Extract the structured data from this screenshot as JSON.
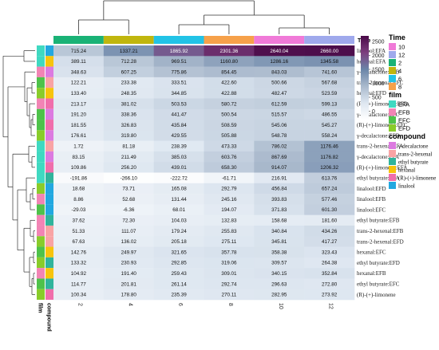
{
  "chart_data": {
    "type": "heatmap",
    "column_annotation_title": "Time",
    "columns": [
      "2",
      "4",
      "6",
      "8",
      "10",
      "12"
    ],
    "row_annotations": [
      "film",
      "compound"
    ],
    "rows": [
      {
        "label": "linalool:EFA",
        "values": [
          715.24,
          1337.21,
          1865.92,
          2301.36,
          2640.04,
          2660.0
        ],
        "film": "EFA",
        "compound": "linalool"
      },
      {
        "label": "hexanal:EFA",
        "values": [
          389.11,
          712.28,
          969.51,
          1160.8,
          1286.16,
          1345.58
        ],
        "film": "EFA",
        "compound": "hexanal"
      },
      {
        "label": "γ-decalactone:EFB",
        "values": [
          348.63,
          607.25,
          775.86,
          854.45,
          843.03,
          741.6
        ],
        "film": "EFB",
        "compound": "γ-decalactone"
      },
      {
        "label": "trans-2-hexenal:EFC",
        "values": [
          122.21,
          233.38,
          333.51,
          422.6,
          500.66,
          567.68
        ],
        "film": "EFC",
        "compound": "trans-2-hexenal"
      },
      {
        "label": "hexanal:EFD",
        "values": [
          133.4,
          248.35,
          344.85,
          422.88,
          482.47,
          523.59
        ],
        "film": "EFD",
        "compound": "hexanal"
      },
      {
        "label": "(R)-(+)-limonene:EFB",
        "values": [
          213.17,
          381.02,
          503.53,
          580.72,
          612.59,
          599.13
        ],
        "film": "EFB",
        "compound": "(R)-(+)-limonene"
      },
      {
        "label": "γ-decalactone:EFC",
        "values": [
          191.2,
          338.36,
          441.47,
          500.54,
          515.57,
          486.55
        ],
        "film": "EFC",
        "compound": "γ-decalactone"
      },
      {
        "label": "(R)-(+)-limonene:EFC",
        "values": [
          181.55,
          326.83,
          435.84,
          508.59,
          545.06,
          545.27
        ],
        "film": "EFC",
        "compound": "(R)-(+)-limonene"
      },
      {
        "label": "γ-decalactone:EFD",
        "values": [
          176.61,
          319.8,
          429.55,
          505.88,
          548.78,
          558.24
        ],
        "film": "EFD",
        "compound": "γ-decalactone"
      },
      {
        "label": "trans-2-hexenal:EFA",
        "values": [
          1.72,
          81.18,
          238.39,
          473.33,
          786.02,
          1176.46
        ],
        "film": "EFA",
        "compound": "trans-2-hexenal"
      },
      {
        "label": "γ-decalactone:EFA",
        "values": [
          83.15,
          211.49,
          385.03,
          603.76,
          867.69,
          1176.82
        ],
        "film": "EFA",
        "compound": "γ-decalactone"
      },
      {
        "label": "(R)-(+)-limonene:EFA",
        "values": [
          109.86,
          256.2,
          439.01,
          658.3,
          914.07,
          1206.32
        ],
        "film": "EFA",
        "compound": "(R)-(+)-limonene"
      },
      {
        "label": "ethyl butyrate:EFA",
        "values": [
          -191.86,
          -266.1,
          -222.72,
          -61.71,
          216.91,
          613.76
        ],
        "film": "EFA",
        "compound": "ethyl butyrate"
      },
      {
        "label": "linalool:EFD",
        "values": [
          18.68,
          73.71,
          165.08,
          292.79,
          456.84,
          657.24
        ],
        "film": "EFD",
        "compound": "linalool"
      },
      {
        "label": "linalool:EFB",
        "values": [
          8.86,
          52.68,
          131.44,
          245.16,
          393.83,
          577.46
        ],
        "film": "EFB",
        "compound": "linalool"
      },
      {
        "label": "linalool:EFC",
        "values": [
          -29.03,
          -6.36,
          68.01,
          194.07,
          371.83,
          601.3
        ],
        "film": "EFC",
        "compound": "linalool"
      },
      {
        "label": "ethyl butyrate:EFB",
        "values": [
          37.62,
          72.3,
          104.03,
          132.83,
          158.68,
          181.6
        ],
        "film": "EFB",
        "compound": "ethyl butyrate"
      },
      {
        "label": "trans-2-hexenal:EFB",
        "values": [
          51.33,
          111.07,
          179.24,
          255.83,
          340.84,
          434.26
        ],
        "film": "EFB",
        "compound": "trans-2-hexenal"
      },
      {
        "label": "trans-2-hexenal:EFD",
        "values": [
          67.63,
          136.02,
          205.18,
          275.11,
          345.81,
          417.27
        ],
        "film": "EFD",
        "compound": "trans-2-hexenal"
      },
      {
        "label": "hexanal:EFC",
        "values": [
          142.76,
          249.97,
          321.65,
          357.78,
          358.38,
          323.43
        ],
        "film": "EFC",
        "compound": "hexanal"
      },
      {
        "label": "ethyl butyrate:EFD",
        "values": [
          133.32,
          230.93,
          292.85,
          319.06,
          309.57,
          264.38
        ],
        "film": "EFD",
        "compound": "ethyl butyrate"
      },
      {
        "label": "hexanal:EFB",
        "values": [
          104.92,
          191.4,
          259.43,
          309.01,
          340.15,
          352.84
        ],
        "film": "EFB",
        "compound": "hexanal"
      },
      {
        "label": "ethyl butyrate:EFC",
        "values": [
          114.77,
          201.81,
          261.14,
          292.74,
          296.63,
          272.8
        ],
        "film": "EFC",
        "compound": "ethyl butyrate"
      },
      {
        "label": "(R)-(+)-limonene",
        "values": [
          100.34,
          178.8,
          235.39,
          270.11,
          282.95,
          273.92
        ],
        "film": "EFD",
        "compound": "(R)-(+)-limonene"
      }
    ],
    "color_scale": {
      "ticks": [
        0,
        500,
        1000,
        1500,
        2000,
        2500
      ],
      "range": [
        -300,
        2700
      ],
      "stops": [
        "#ffffff",
        "#dde6f0",
        "#a9b9cc",
        "#6b85a8",
        "#7c3f7e",
        "#4a0a48"
      ]
    },
    "legends": {
      "time": {
        "title": "Time",
        "items": [
          {
            "label": "10",
            "color": "#f07ad8"
          },
          {
            "label": "12",
            "color": "#9fa9ec"
          },
          {
            "label": "2",
            "color": "#1ab276"
          },
          {
            "label": "4",
            "color": "#c0b60e"
          },
          {
            "label": "6",
            "color": "#22c3e6"
          },
          {
            "label": "8",
            "color": "#f6a14a"
          }
        ]
      },
      "film": {
        "title": "film",
        "items": [
          {
            "label": "EFA",
            "color": "#3fd9c1"
          },
          {
            "label": "EFB",
            "color": "#f284b5"
          },
          {
            "label": "EFC",
            "color": "#4ec24a"
          },
          {
            "label": "EFD",
            "color": "#89cc2a"
          }
        ]
      },
      "compound": {
        "title": "compound",
        "items": [
          {
            "label": "γ-decalactone",
            "color": "#dc7ae0"
          },
          {
            "label": "trans-2-hexenal",
            "color": "#f9a3a4"
          },
          {
            "label": "ethyl butyrate",
            "color": "#30b49c"
          },
          {
            "label": "hexanal",
            "color": "#f7c40c"
          },
          {
            "label": "(R)-(+)-limonene",
            "color": "#f06eab"
          },
          {
            "label": "linalool",
            "color": "#22a8e0"
          }
        ]
      }
    },
    "column_order": [
      "2",
      "4",
      "6",
      "8",
      "10",
      "12"
    ],
    "legend_placement": "right",
    "grid": false
  },
  "axis_titles": {
    "row_annotation_labels": [
      "film",
      "compound"
    ]
  }
}
